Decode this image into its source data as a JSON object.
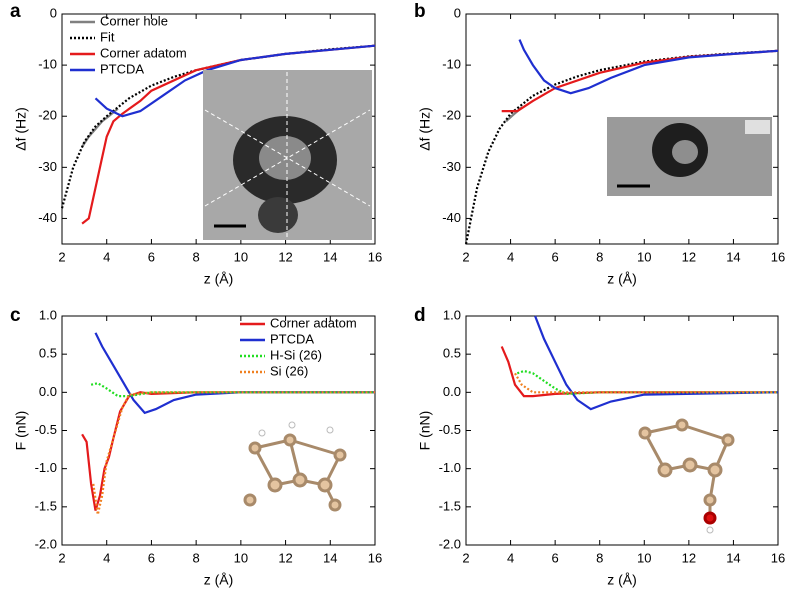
{
  "chart_data": [
    {
      "type": "line",
      "panel_label": "a",
      "xlabel": "z (Å)",
      "ylabel": "Δf (Hz)",
      "xlim": [
        2,
        16
      ],
      "xticks": [
        2,
        4,
        6,
        8,
        10,
        12,
        14,
        16
      ],
      "ylim": [
        -45,
        0
      ],
      "yticks": [
        0,
        -10,
        -20,
        -30,
        -40
      ],
      "legend": "upper left",
      "series": [
        {
          "name": "Corner hole",
          "color": "#808080",
          "style": "solid",
          "x": [
            2.9,
            3.2,
            3.5,
            3.8,
            4.1,
            4.5
          ],
          "values": [
            -26,
            -24,
            -22.5,
            -21,
            -20,
            -18.5
          ]
        },
        {
          "name": "Fit",
          "color": "#000000",
          "style": "dotted",
          "x": [
            2,
            2.5,
            3,
            3.5,
            4,
            5,
            6,
            7,
            8,
            10,
            12,
            14,
            16
          ],
          "values": [
            -38,
            -30,
            -25,
            -22,
            -20,
            -16.5,
            -14,
            -12.3,
            -11,
            -9,
            -7.8,
            -6.9,
            -6.2
          ]
        },
        {
          "name": "Corner adatom",
          "color": "#e41a1c",
          "style": "solid",
          "x": [
            2.9,
            3.2,
            3.5,
            3.8,
            4.0,
            4.3,
            4.7,
            5.5,
            6,
            8,
            10,
            12,
            14,
            16
          ],
          "values": [
            -41,
            -40,
            -34,
            -28,
            -24,
            -21,
            -19.5,
            -17,
            -15,
            -11,
            -9,
            -7.8,
            -7,
            -6.2
          ]
        },
        {
          "name": "PTCDA",
          "color": "#1f2fd0",
          "style": "solid",
          "x": [
            3.5,
            4,
            4.7,
            5.5,
            6.5,
            7.5,
            8.5,
            10,
            12,
            14,
            16
          ],
          "values": [
            -16.5,
            -18.5,
            -20,
            -19,
            -16,
            -13,
            -11,
            -9,
            -7.8,
            -7,
            -6.2
          ]
        }
      ]
    },
    {
      "type": "line",
      "panel_label": "b",
      "xlabel": "z (Å)",
      "ylabel": "Δf (Hz)",
      "xlim": [
        2,
        16
      ],
      "xticks": [
        2,
        4,
        6,
        8,
        10,
        12,
        14,
        16
      ],
      "ylim": [
        -45,
        0
      ],
      "yticks": [
        0,
        -10,
        -20,
        -30,
        -40
      ],
      "series": [
        {
          "color": "#808080",
          "style": "solid",
          "x": [
            3.8,
            4.1,
            4.5
          ],
          "values": [
            -21,
            -19.8,
            -18.3
          ]
        },
        {
          "color": "#000000",
          "style": "dotted",
          "x": [
            2,
            2.5,
            3,
            3.5,
            4,
            5,
            6,
            7,
            8,
            10,
            12,
            14,
            16
          ],
          "values": [
            -45,
            -34,
            -27,
            -22.5,
            -19.5,
            -16,
            -13.8,
            -12.2,
            -11,
            -9.3,
            -8.3,
            -7.7,
            -7.2
          ]
        },
        {
          "color": "#e41a1c",
          "style": "solid",
          "x": [
            3.6,
            4.3,
            5,
            6,
            8,
            10,
            12,
            14,
            16
          ],
          "values": [
            -19,
            -19,
            -17,
            -14.5,
            -11.5,
            -9.5,
            -8.4,
            -7.8,
            -7.2
          ]
        },
        {
          "color": "#1f2fd0",
          "style": "solid",
          "x": [
            4.4,
            4.6,
            5,
            5.5,
            6,
            6.7,
            7.5,
            8.5,
            10,
            12,
            14,
            16
          ],
          "values": [
            -5,
            -7,
            -10,
            -13,
            -14.5,
            -15.5,
            -14.5,
            -12.5,
            -10,
            -8.5,
            -7.8,
            -7.2
          ]
        }
      ]
    },
    {
      "type": "line",
      "panel_label": "c",
      "xlabel": "z (Å)",
      "ylabel": "F (nN)",
      "xlim": [
        2,
        16
      ],
      "xticks": [
        2,
        4,
        6,
        8,
        10,
        12,
        14,
        16
      ],
      "ylim": [
        -2,
        1
      ],
      "yticks": [
        {
          "value": 1,
          "label": "1.0"
        },
        {
          "value": 0.5,
          "label": "0.5"
        },
        {
          "value": 0,
          "label": "0.0"
        },
        {
          "value": -0.5,
          "label": "-0.5"
        },
        {
          "value": -1,
          "label": "-1.0"
        },
        {
          "value": -1.5,
          "label": "-1.5"
        },
        {
          "value": -2,
          "label": "-2.0"
        }
      ],
      "legend": "upper right",
      "series": [
        {
          "name": "Corner adatom",
          "color": "#e41a1c",
          "style": "solid",
          "x": [
            2.9,
            3.1,
            3.3,
            3.5,
            3.7,
            3.9,
            4.1,
            4.3,
            4.6,
            5,
            5.5,
            6,
            8,
            16
          ],
          "values": [
            -0.55,
            -0.65,
            -1.2,
            -1.55,
            -1.35,
            -1.0,
            -0.85,
            -0.6,
            -0.25,
            -0.05,
            0,
            -0.02,
            0,
            0
          ]
        },
        {
          "name": "PTCDA",
          "color": "#1f2fd0",
          "style": "solid",
          "x": [
            3.5,
            3.8,
            4.2,
            4.7,
            5.2,
            5.7,
            6.2,
            7,
            8,
            10,
            16
          ],
          "values": [
            0.78,
            0.6,
            0.4,
            0.15,
            -0.1,
            -0.27,
            -0.22,
            -0.1,
            -0.03,
            0,
            0
          ]
        },
        {
          "name": "H-Si (26)",
          "color": "#22dd22",
          "style": "dotted",
          "x": [
            3.3,
            3.6,
            4,
            4.5,
            5,
            6,
            16
          ],
          "values": [
            0.1,
            0.12,
            0.05,
            -0.05,
            -0.05,
            0,
            0
          ]
        },
        {
          "name": "Si (26)",
          "color": "#f08020",
          "style": "dotted",
          "x": [
            3.4,
            3.6,
            3.8,
            4,
            4.3,
            4.7,
            5,
            6,
            16
          ],
          "values": [
            -1.2,
            -1.6,
            -1.35,
            -0.9,
            -0.6,
            -0.2,
            -0.03,
            0,
            0
          ]
        }
      ]
    },
    {
      "type": "line",
      "panel_label": "d",
      "xlabel": "z (Å)",
      "ylabel": "F (nN)",
      "xlim": [
        2,
        16
      ],
      "xticks": [
        2,
        4,
        6,
        8,
        10,
        12,
        14,
        16
      ],
      "ylim": [
        -2,
        1
      ],
      "yticks": [
        {
          "value": 1,
          "label": "1.0"
        },
        {
          "value": 0.5,
          "label": "0.5"
        },
        {
          "value": 0,
          "label": "0.0"
        },
        {
          "value": -0.5,
          "label": "-0.5"
        },
        {
          "value": -1,
          "label": "-1.0"
        },
        {
          "value": -1.5,
          "label": "-1.5"
        },
        {
          "value": -2,
          "label": "-2.0"
        }
      ],
      "series": [
        {
          "color": "#e41a1c",
          "style": "solid",
          "x": [
            3.6,
            3.9,
            4.2,
            4.6,
            5,
            6,
            8,
            16
          ],
          "values": [
            0.6,
            0.4,
            0.1,
            -0.05,
            -0.05,
            -0.02,
            0,
            0
          ]
        },
        {
          "color": "#1f2fd0",
          "style": "solid",
          "x": [
            5.1,
            5.5,
            6,
            6.5,
            7,
            7.6,
            8.5,
            10,
            16
          ],
          "values": [
            1.0,
            0.7,
            0.4,
            0.1,
            -0.1,
            -0.22,
            -0.12,
            -0.03,
            0
          ]
        },
        {
          "color": "#22dd22",
          "style": "dotted",
          "x": [
            4.3,
            4.6,
            5,
            5.5,
            6,
            6.5,
            8,
            16
          ],
          "values": [
            0.25,
            0.28,
            0.25,
            0.15,
            0.05,
            -0.02,
            0,
            0
          ]
        },
        {
          "color": "#f08020",
          "style": "dotted",
          "x": [
            4.2,
            4.5,
            5,
            6,
            16
          ],
          "values": [
            0.25,
            0.1,
            0,
            0,
            0
          ]
        }
      ]
    }
  ]
}
